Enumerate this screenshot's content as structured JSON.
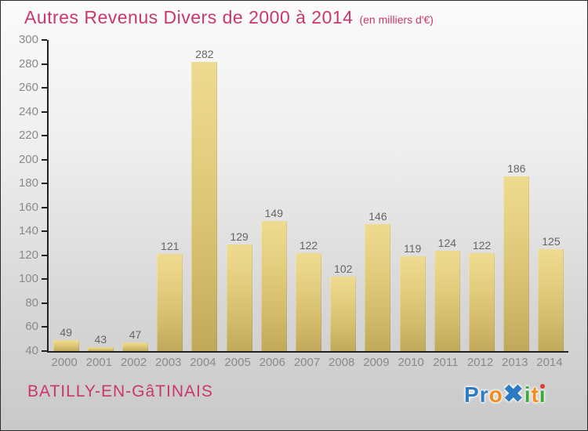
{
  "title": {
    "text": "Autres Revenus Divers de 2000 à 2014",
    "subtitle": "(en milliers d'€)",
    "color": "#c8376e"
  },
  "footer": {
    "commune": "BATILLY-EN-GâTINAIS",
    "logo": {
      "name": "Proxiti",
      "letters": [
        {
          "ch": "P",
          "color": "#2e7bc1"
        },
        {
          "ch": "r",
          "color": "#2e7bc1"
        },
        {
          "ch": "o",
          "color": "#f28c1e"
        },
        {
          "ch": "✖",
          "color": "#2e7bc1",
          "big": true
        },
        {
          "ch": "i",
          "color": "#3aaa35"
        },
        {
          "ch": "t",
          "color": "#f28c1e"
        },
        {
          "ch": "ı",
          "color": "#3aaa35",
          "dot": "#e03c31"
        }
      ]
    }
  },
  "chart_data": {
    "type": "bar",
    "title": "Autres Revenus Divers de 2000 à 2014",
    "subtitle": "(en milliers d'€)",
    "categories": [
      "2000",
      "2001",
      "2002",
      "2003",
      "2004",
      "2005",
      "2006",
      "2007",
      "2008",
      "2009",
      "2010",
      "2011",
      "2012",
      "2013",
      "2014"
    ],
    "values": [
      49,
      43,
      47,
      121,
      282,
      129,
      149,
      122,
      102,
      146,
      119,
      124,
      122,
      186,
      125
    ],
    "xlabel": "",
    "ylabel": "",
    "ylim": [
      40,
      300
    ],
    "yticks": [
      40,
      60,
      80,
      100,
      120,
      140,
      160,
      180,
      200,
      220,
      240,
      260,
      280,
      300
    ],
    "grid": false,
    "legend": null,
    "bar_color_top": "#efdb90",
    "bar_color_bottom": "#c1a95c",
    "axis_color": "#222222",
    "tick_label_color": "#8a8a8a",
    "value_label_color": "#666666",
    "background_top": "#fbfbfb",
    "background_bottom": "#c9c9c9"
  }
}
